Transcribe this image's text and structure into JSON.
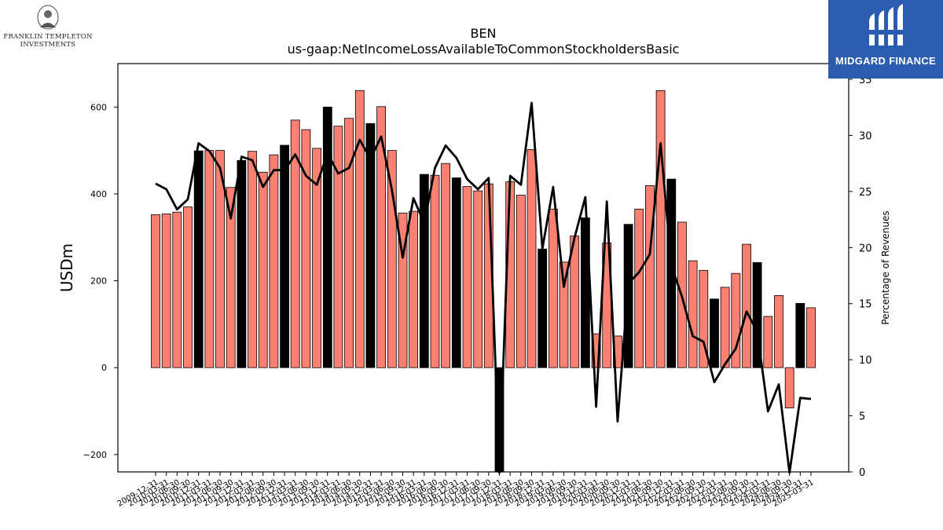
{
  "brand": {
    "line1": "FRANKLIN TEMPLETON",
    "line2": "INVESTMENTS"
  },
  "partner": {
    "name": "MIDGARD FINANCE"
  },
  "chart_data": {
    "type": "bar",
    "title": "BEN",
    "subtitle": "us-gaap:NetIncomeLossAvailableToCommonStockholdersBasic",
    "ylabel": "USDm",
    "y2label": "Percentage of Revenues",
    "ylim": [
      -240,
      700
    ],
    "y2lim": [
      0,
      36.4
    ],
    "yticks": [
      -200,
      0,
      200,
      400,
      600
    ],
    "y2ticks": [
      0,
      5,
      10,
      15,
      20,
      25,
      30,
      35
    ],
    "colors": {
      "annual": "#000000",
      "quarter": "#fa8072",
      "line": "#000000"
    },
    "categories": [
      "2009-12-31",
      "2010-03-31",
      "2010-06-30",
      "2010-09-30",
      "2010-12-31",
      "2011-03-31",
      "2011-06-30",
      "2011-09-30",
      "2011-12-31",
      "2012-03-31",
      "2012-06-30",
      "2012-09-30",
      "2012-12-31",
      "2013-03-31",
      "2013-06-30",
      "2013-09-30",
      "2013-12-31",
      "2014-03-31",
      "2014-06-30",
      "2014-09-30",
      "2014-12-31",
      "2015-03-31",
      "2015-06-30",
      "2015-09-30",
      "2015-12-31",
      "2016-03-31",
      "2016-06-30",
      "2016-09-30",
      "2016-12-31",
      "2017-03-31",
      "2017-06-30",
      "2017-09-30",
      "2017-12-31",
      "2018-03-31",
      "2018-06-30",
      "2018-09-30",
      "2018-12-31",
      "2019-03-31",
      "2019-06-30",
      "2019-09-30",
      "2019-12-31",
      "2020-03-31",
      "2020-06-30",
      "2020-09-30",
      "2020-12-31",
      "2021-03-31",
      "2021-06-30",
      "2021-09-30",
      "2021-12-31",
      "2022-03-31",
      "2022-06-30",
      "2022-09-30",
      "2022-12-31",
      "2023-03-31",
      "2023-06-30",
      "2023-09-30",
      "2023-12-31",
      "2024-03-31",
      "2024-06-30",
      "2024-09-30",
      "2024-12-31",
      "2025-03-31"
    ],
    "values": [
      352,
      354,
      358,
      370,
      499,
      500,
      500,
      415,
      477,
      498,
      450,
      490,
      512,
      570,
      548,
      505,
      600,
      556,
      574,
      638,
      562,
      601,
      500,
      356,
      360,
      445,
      443,
      470,
      437,
      417,
      407,
      423,
      -240,
      428,
      397,
      502,
      273,
      365,
      243,
      303,
      345,
      78,
      287,
      73,
      330,
      365,
      419,
      638,
      434,
      335,
      246,
      224,
      158,
      185,
      217,
      284,
      242,
      118,
      166,
      -93,
      148,
      138
    ],
    "annual": [
      false,
      false,
      false,
      false,
      true,
      false,
      false,
      false,
      true,
      false,
      false,
      false,
      true,
      false,
      false,
      false,
      true,
      false,
      false,
      false,
      true,
      false,
      false,
      false,
      false,
      true,
      false,
      false,
      true,
      false,
      false,
      false,
      true,
      false,
      false,
      false,
      true,
      false,
      false,
      false,
      true,
      false,
      false,
      false,
      true,
      false,
      false,
      false,
      true,
      false,
      false,
      false,
      true,
      false,
      false,
      false,
      true,
      false,
      false,
      false,
      true,
      false
    ],
    "pct_revenues": [
      25.7,
      25.2,
      23.4,
      24.3,
      29.3,
      28.6,
      27.1,
      22.6,
      28.1,
      27.8,
      25.4,
      26.9,
      26.9,
      28.3,
      26.4,
      25.6,
      28.4,
      26.6,
      27.1,
      29.6,
      27.9,
      29.9,
      25.1,
      19.1,
      24.4,
      22.2,
      27.1,
      29.1,
      28.0,
      26.1,
      25.2,
      26.2,
      -3.0,
      26.4,
      25.6,
      32.9,
      19.9,
      25.4,
      16.5,
      20.9,
      24.5,
      5.8,
      24.1,
      4.5,
      16.8,
      17.8,
      19.4,
      29.3,
      18.4,
      15.6,
      12.1,
      11.6,
      8.0,
      9.6,
      11.0,
      14.3,
      12.5,
      5.4,
      7.8,
      -1.5,
      6.6,
      6.5
    ]
  }
}
